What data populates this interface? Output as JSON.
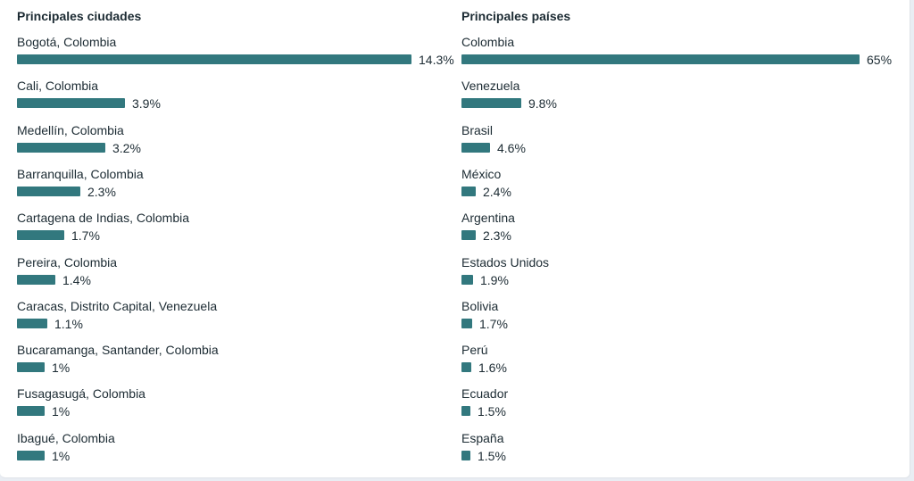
{
  "chart_data": [
    {
      "type": "bar",
      "orientation": "horizontal",
      "title": "Principales ciudades",
      "max": 14.3,
      "categories": [
        "Bogotá, Colombia",
        "Cali, Colombia",
        "Medellín, Colombia",
        "Barranquilla, Colombia",
        "Cartagena de Indias, Colombia",
        "Pereira, Colombia",
        "Caracas, Distrito Capital, Venezuela",
        "Bucaramanga, Santander, Colombia",
        "Fusagasugá, Colombia",
        "Ibagué, Colombia"
      ],
      "values": [
        14.3,
        3.9,
        3.2,
        2.3,
        1.7,
        1.4,
        1.1,
        1,
        1,
        1
      ],
      "value_labels": [
        "14.3%",
        "3.9%",
        "3.2%",
        "2.3%",
        "1.7%",
        "1.4%",
        "1.1%",
        "1%",
        "1%",
        "1%"
      ],
      "color": "#32787e"
    },
    {
      "type": "bar",
      "orientation": "horizontal",
      "title": "Principales países",
      "max": 65,
      "categories": [
        "Colombia",
        "Venezuela",
        "Brasil",
        "México",
        "Argentina",
        "Estados Unidos",
        "Bolivia",
        "Perú",
        "Ecuador",
        "España"
      ],
      "values": [
        65,
        9.8,
        4.6,
        2.4,
        2.3,
        1.9,
        1.7,
        1.6,
        1.5,
        1.5
      ],
      "value_labels": [
        "65%",
        "9.8%",
        "4.6%",
        "2.4%",
        "2.3%",
        "1.9%",
        "1.7%",
        "1.6%",
        "1.5%",
        "1.5%"
      ],
      "color": "#32787e"
    }
  ]
}
